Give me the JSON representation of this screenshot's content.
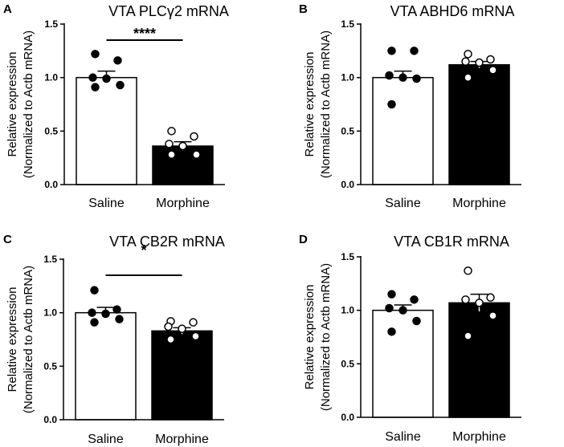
{
  "figure": {
    "ylabel_line1": "Relative expression",
    "ylabel_line2": "(Normalized to Actb mRNA)",
    "colors": {
      "saline_fill": "#ffffff",
      "morphine_fill": "#000000",
      "axis": "#000000"
    }
  },
  "chart_data": [
    {
      "panel": "A",
      "type": "bar",
      "title": "VTA PLCγ2 mRNA",
      "ylabel": "Relative expression (Normalized to Actb mRNA)",
      "categories": [
        "Saline",
        "Morphine"
      ],
      "values": [
        1.0,
        0.36
      ],
      "sem": [
        0.06,
        0.04
      ],
      "ylim": [
        0,
        1.5
      ],
      "yticks": [
        "0.0",
        "0.5",
        "1.0",
        "1.5"
      ],
      "points": [
        [
          1.22,
          1.16,
          1.0,
          0.99,
          0.93,
          0.91
        ],
        [
          0.5,
          0.45,
          0.38,
          0.36,
          0.28,
          0.28
        ]
      ],
      "significance": "****"
    },
    {
      "panel": "B",
      "type": "bar",
      "title": "VTA ABHD6 mRNA",
      "ylabel": "Relative expression (Normalized to Actb mRNA)",
      "categories": [
        "Saline",
        "Morphine"
      ],
      "values": [
        1.0,
        1.12
      ],
      "sem": [
        0.06,
        0.03
      ],
      "ylim": [
        0,
        1.5
      ],
      "yticks": [
        "0.0",
        "0.5",
        "1.0",
        "1.5"
      ],
      "points": [
        [
          1.25,
          1.25,
          1.02,
          1.0,
          0.99,
          0.75
        ],
        [
          1.22,
          1.17,
          1.15,
          1.14,
          1.07,
          1.0
        ]
      ],
      "significance": ""
    },
    {
      "panel": "C",
      "type": "bar",
      "title": "VTA CB2R mRNA",
      "ylabel": "Relative expression (Normalized to Actb mRNA)",
      "categories": [
        "Saline",
        "Morphine"
      ],
      "values": [
        1.0,
        0.83
      ],
      "sem": [
        0.05,
        0.03
      ],
      "ylim": [
        0,
        1.5
      ],
      "yticks": [
        "0.0",
        "0.5",
        "1.0",
        "1.5"
      ],
      "points": [
        [
          1.21,
          1.03,
          1.0,
          0.99,
          0.94,
          0.91
        ],
        [
          0.92,
          0.91,
          0.87,
          0.85,
          0.78,
          0.75
        ]
      ],
      "significance": "*"
    },
    {
      "panel": "D",
      "type": "bar",
      "title": "VTA CB1R mRNA",
      "ylabel": "Relative expression (Normalized to Actb mRNA)",
      "categories": [
        "Saline",
        "Morphine"
      ],
      "values": [
        1.0,
        1.07
      ],
      "sem": [
        0.05,
        0.08
      ],
      "ylim": [
        0,
        1.5
      ],
      "yticks": [
        "0.0",
        "0.5",
        "1.0",
        "1.5"
      ],
      "points": [
        [
          1.15,
          1.1,
          1.02,
          1.0,
          0.9,
          0.8
        ],
        [
          1.37,
          1.12,
          1.1,
          1.07,
          0.95,
          0.76
        ]
      ],
      "significance": ""
    }
  ]
}
